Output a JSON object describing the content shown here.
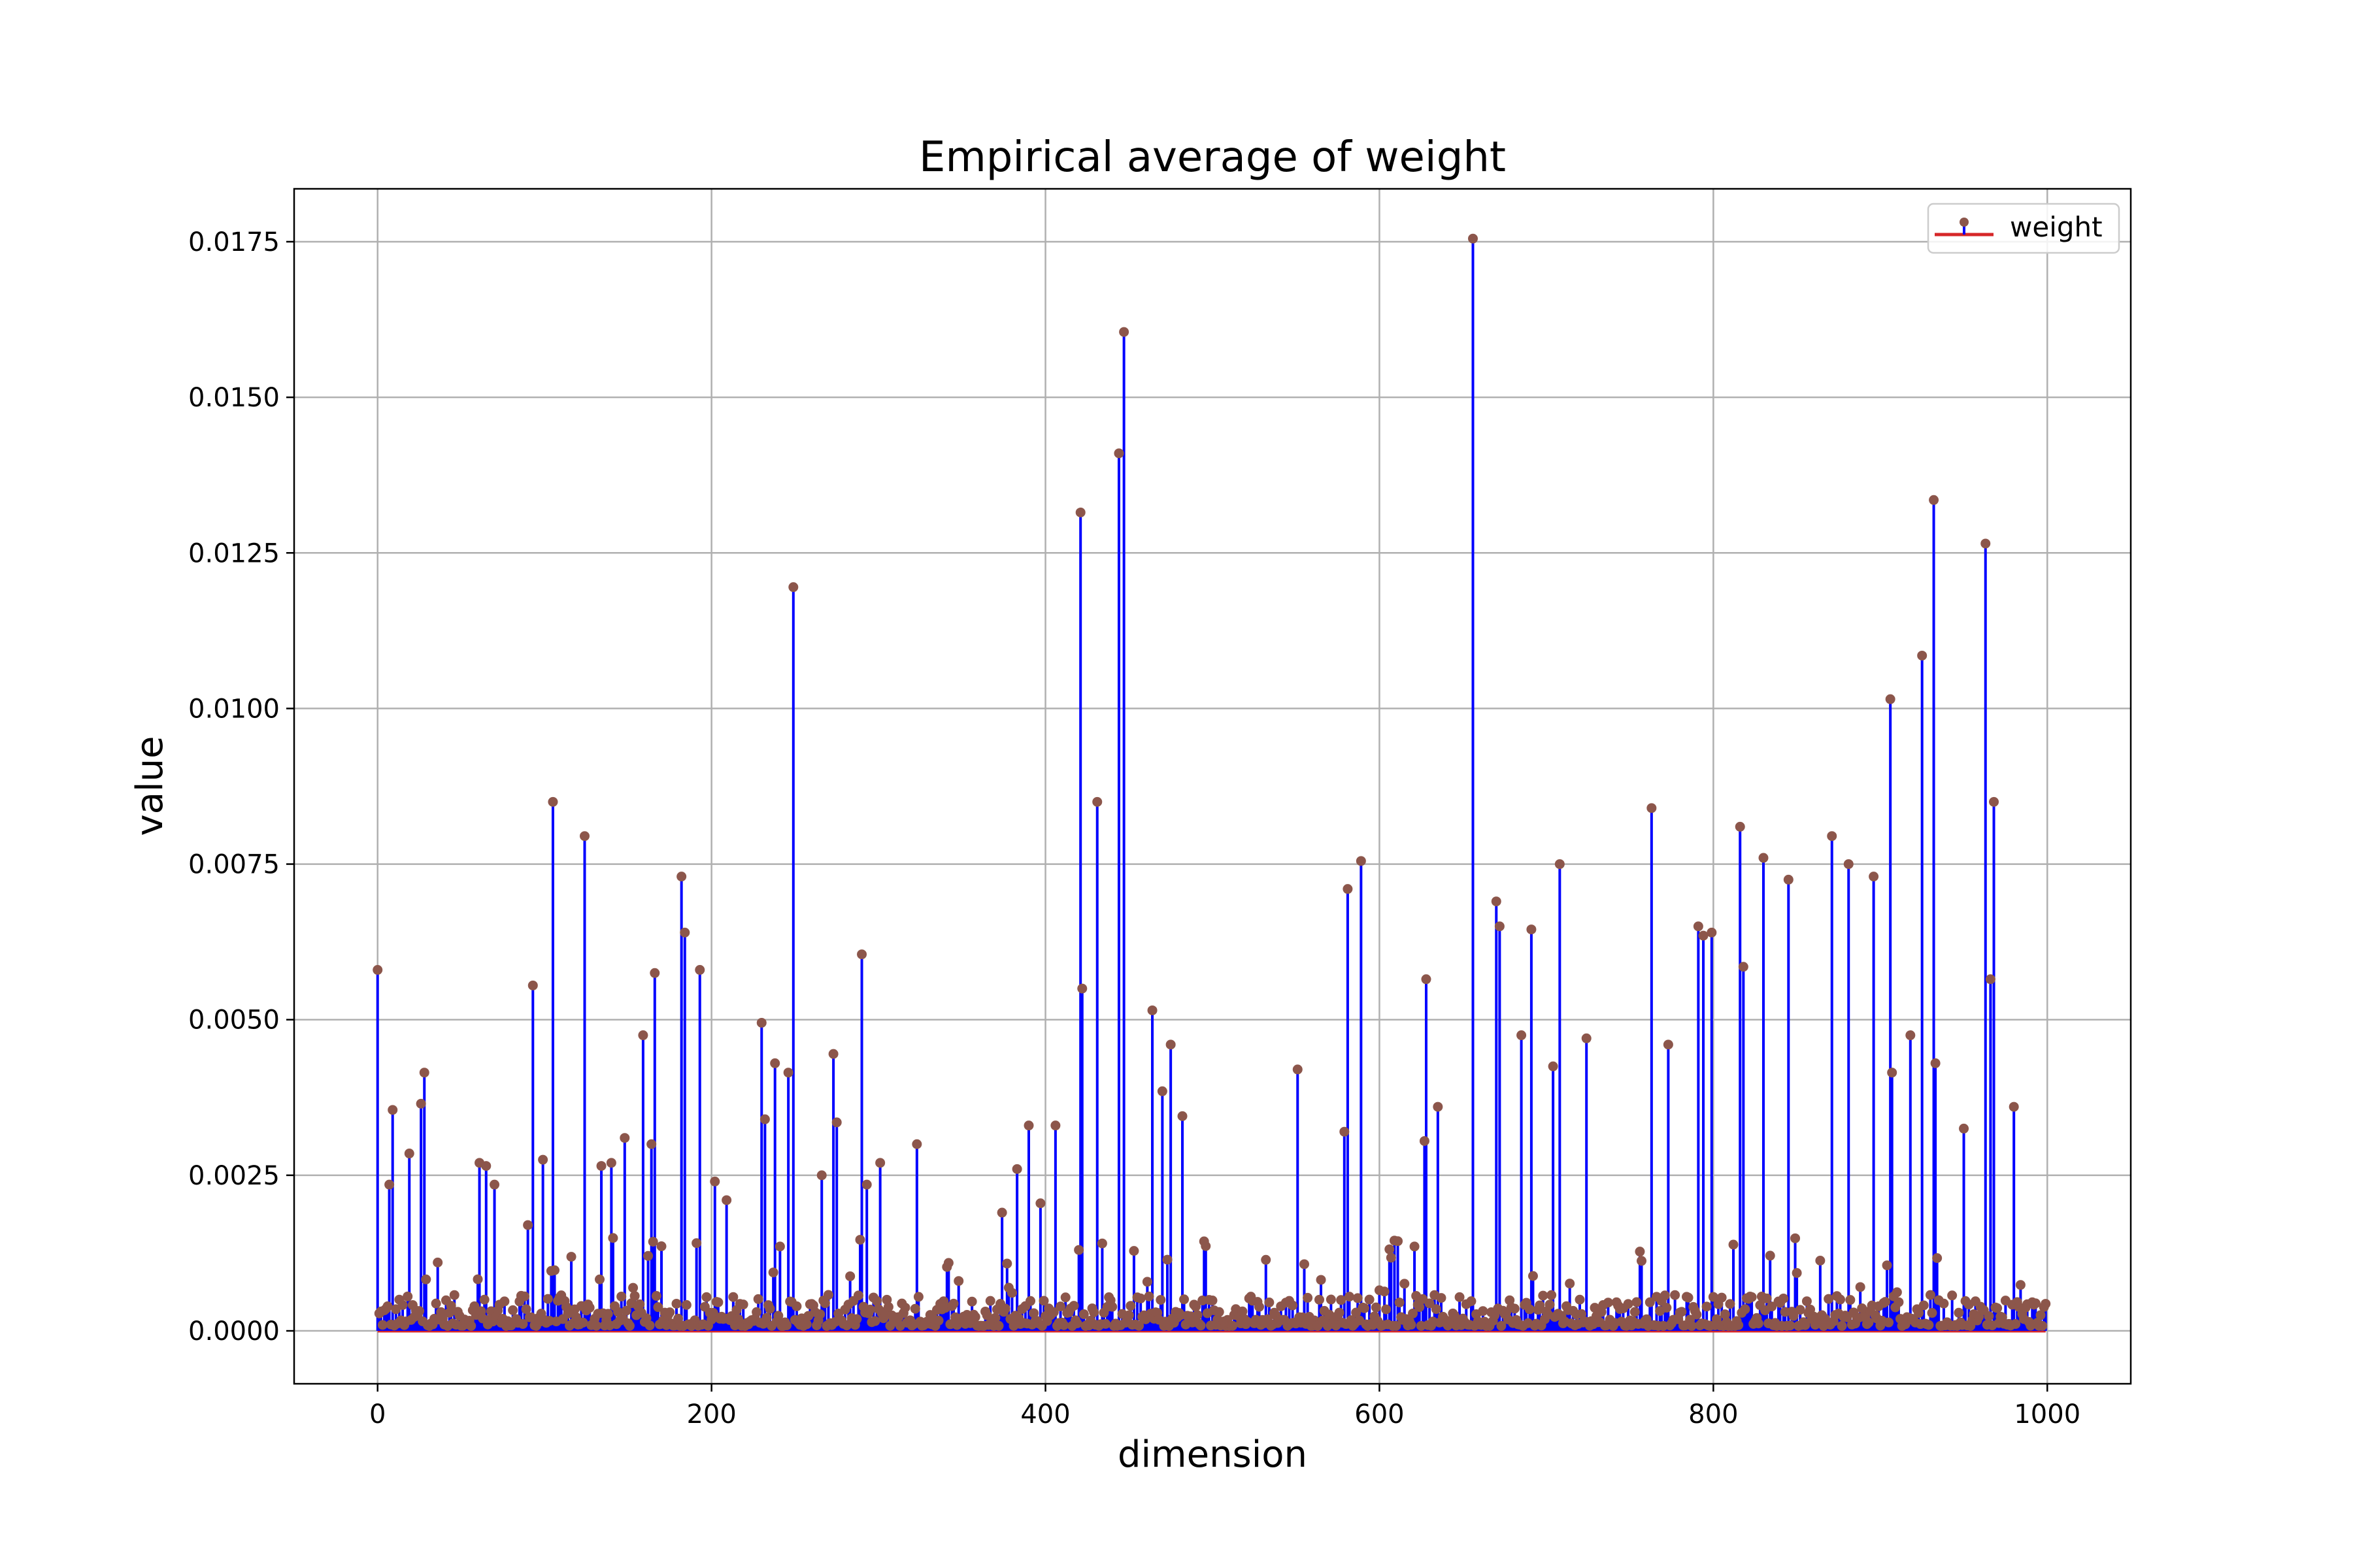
{
  "chart_data": {
    "type": "stem",
    "title": "Empirical average of weight",
    "xlabel": "dimension",
    "ylabel": "value",
    "xlim": [
      -50,
      1050
    ],
    "ylim": [
      -0.00085,
      0.01835
    ],
    "xticks": [
      0,
      200,
      400,
      600,
      800,
      1000
    ],
    "xtick_labels": [
      "0",
      "200",
      "400",
      "600",
      "800",
      "1000"
    ],
    "yticks": [
      0,
      0.0025,
      0.005,
      0.0075,
      0.01,
      0.0125,
      0.015,
      0.0175
    ],
    "ytick_labels": [
      "0.0000",
      "0.0025",
      "0.0050",
      "0.0075",
      "0.0100",
      "0.0125",
      "0.0150",
      "0.0175"
    ],
    "grid": true,
    "legend": {
      "position": "top-right",
      "entries": [
        {
          "name": "weight"
        }
      ]
    },
    "colors": {
      "stem": "#0000ff",
      "marker": "#8c564b",
      "baseline": "#d62728"
    },
    "baseline_value": 0,
    "series_count_hint": "1000 dimensions (0-999); most values below 0.001",
    "highlighted_points": [
      {
        "x": 0,
        "y": 0.0058
      },
      {
        "x": 7,
        "y": 0.00235
      },
      {
        "x": 9,
        "y": 0.00355
      },
      {
        "x": 19,
        "y": 0.00285
      },
      {
        "x": 26,
        "y": 0.00365
      },
      {
        "x": 28,
        "y": 0.00415
      },
      {
        "x": 61,
        "y": 0.0027
      },
      {
        "x": 65,
        "y": 0.00265
      },
      {
        "x": 70,
        "y": 0.00235
      },
      {
        "x": 90,
        "y": 0.0017
      },
      {
        "x": 93,
        "y": 0.00555
      },
      {
        "x": 99,
        "y": 0.00275
      },
      {
        "x": 105,
        "y": 0.0085
      },
      {
        "x": 124,
        "y": 0.00795
      },
      {
        "x": 134,
        "y": 0.00265
      },
      {
        "x": 140,
        "y": 0.0027
      },
      {
        "x": 148,
        "y": 0.0031
      },
      {
        "x": 159,
        "y": 0.00475
      },
      {
        "x": 164,
        "y": 0.003
      },
      {
        "x": 166,
        "y": 0.00575
      },
      {
        "x": 182,
        "y": 0.0073
      },
      {
        "x": 184,
        "y": 0.0064
      },
      {
        "x": 193,
        "y": 0.0058
      },
      {
        "x": 202,
        "y": 0.0024
      },
      {
        "x": 209,
        "y": 0.0021
      },
      {
        "x": 230,
        "y": 0.00495
      },
      {
        "x": 232,
        "y": 0.0034
      },
      {
        "x": 238,
        "y": 0.0043
      },
      {
        "x": 246,
        "y": 0.00415
      },
      {
        "x": 249,
        "y": 0.01195
      },
      {
        "x": 266,
        "y": 0.0025
      },
      {
        "x": 273,
        "y": 0.00445
      },
      {
        "x": 275,
        "y": 0.00335
      },
      {
        "x": 290,
        "y": 0.00605
      },
      {
        "x": 293,
        "y": 0.00235
      },
      {
        "x": 301,
        "y": 0.0027
      },
      {
        "x": 323,
        "y": 0.003
      },
      {
        "x": 374,
        "y": 0.0019
      },
      {
        "x": 383,
        "y": 0.0026
      },
      {
        "x": 390,
        "y": 0.0033
      },
      {
        "x": 397,
        "y": 0.00205
      },
      {
        "x": 406,
        "y": 0.0033
      },
      {
        "x": 421,
        "y": 0.01315
      },
      {
        "x": 422,
        "y": 0.0055
      },
      {
        "x": 431,
        "y": 0.0085
      },
      {
        "x": 444,
        "y": 0.0141
      },
      {
        "x": 447,
        "y": 0.01605
      },
      {
        "x": 464,
        "y": 0.00515
      },
      {
        "x": 470,
        "y": 0.00385
      },
      {
        "x": 475,
        "y": 0.0046
      },
      {
        "x": 482,
        "y": 0.00345
      },
      {
        "x": 551,
        "y": 0.0042
      },
      {
        "x": 579,
        "y": 0.0032
      },
      {
        "x": 581,
        "y": 0.0071
      },
      {
        "x": 589,
        "y": 0.00755
      },
      {
        "x": 627,
        "y": 0.00305
      },
      {
        "x": 628,
        "y": 0.00565
      },
      {
        "x": 635,
        "y": 0.0036
      },
      {
        "x": 656,
        "y": 0.01755
      },
      {
        "x": 670,
        "y": 0.0069
      },
      {
        "x": 672,
        "y": 0.0065
      },
      {
        "x": 685,
        "y": 0.00475
      },
      {
        "x": 691,
        "y": 0.00645
      },
      {
        "x": 704,
        "y": 0.00425
      },
      {
        "x": 708,
        "y": 0.0075
      },
      {
        "x": 724,
        "y": 0.0047
      },
      {
        "x": 763,
        "y": 0.0084
      },
      {
        "x": 773,
        "y": 0.0046
      },
      {
        "x": 791,
        "y": 0.0065
      },
      {
        "x": 794,
        "y": 0.00635
      },
      {
        "x": 799,
        "y": 0.0064
      },
      {
        "x": 816,
        "y": 0.0081
      },
      {
        "x": 818,
        "y": 0.00585
      },
      {
        "x": 830,
        "y": 0.0076
      },
      {
        "x": 845,
        "y": 0.00725
      },
      {
        "x": 871,
        "y": 0.00795
      },
      {
        "x": 881,
        "y": 0.0075
      },
      {
        "x": 896,
        "y": 0.0073
      },
      {
        "x": 906,
        "y": 0.01015
      },
      {
        "x": 907,
        "y": 0.00415
      },
      {
        "x": 918,
        "y": 0.00475
      },
      {
        "x": 925,
        "y": 0.01085
      },
      {
        "x": 932,
        "y": 0.01335
      },
      {
        "x": 933,
        "y": 0.0043
      },
      {
        "x": 950,
        "y": 0.00325
      },
      {
        "x": 963,
        "y": 0.01265
      },
      {
        "x": 968,
        "y": 0.0085
      },
      {
        "x": 966,
        "y": 0.00565
      },
      {
        "x": 980,
        "y": 0.0036
      }
    ]
  }
}
